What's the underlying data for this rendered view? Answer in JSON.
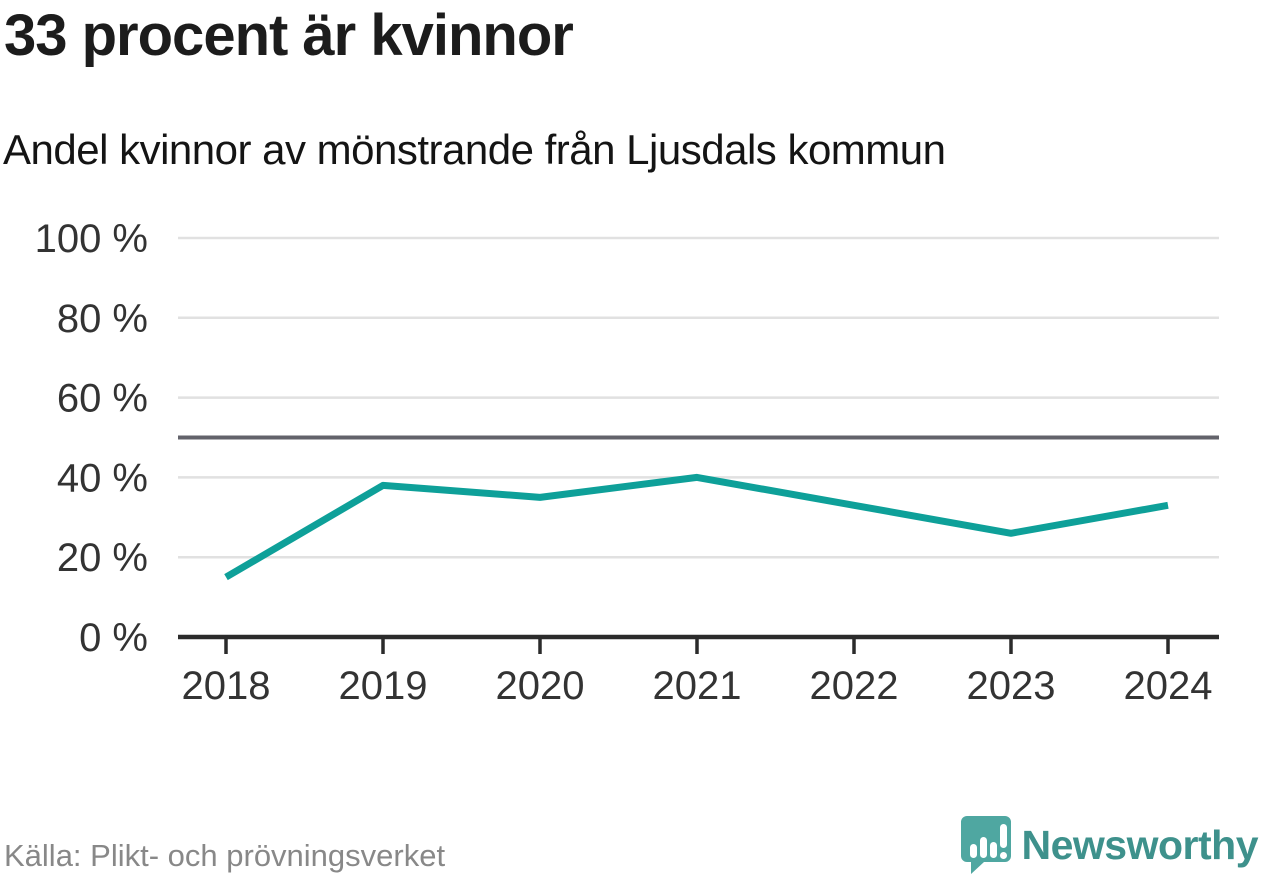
{
  "title": "33 procent är kvinnor",
  "subtitle": "Andel kvinnor av mönstrande från Ljusdals kommun",
  "footer": {
    "source": "Källa: Plikt- och prövningsverket",
    "brand": "Newsworthy"
  },
  "colors": {
    "line": "#0ea099",
    "reference_line": "#63636b",
    "grid": "#e1e1e1",
    "axis": "#2b2b2b",
    "tick_label": "#333333",
    "title_text": "#1c1c1c",
    "muted_text": "#888888",
    "brand_teal": "#3e918c",
    "logo_bubble": "#4fa7a1"
  },
  "chart_data": {
    "type": "line",
    "title": "33 procent är kvinnor",
    "subtitle": "Andel kvinnor av mönstrande från Ljusdals kommun",
    "x": [
      "2018",
      "2019",
      "2020",
      "2021",
      "2022",
      "2023",
      "2024"
    ],
    "series": [
      {
        "name": "Andel kvinnor av mönstrande",
        "values": [
          15,
          38,
          35,
          40,
          33,
          26,
          33
        ]
      }
    ],
    "unit": "%",
    "ylim": [
      0,
      100
    ],
    "yticks": [
      0,
      20,
      40,
      60,
      80,
      100
    ],
    "ytick_labels": [
      "0 %",
      "20 %",
      "40 %",
      "60 %",
      "80 %",
      "100 %"
    ],
    "reference_line": 50,
    "grid": true,
    "legend": "none"
  }
}
